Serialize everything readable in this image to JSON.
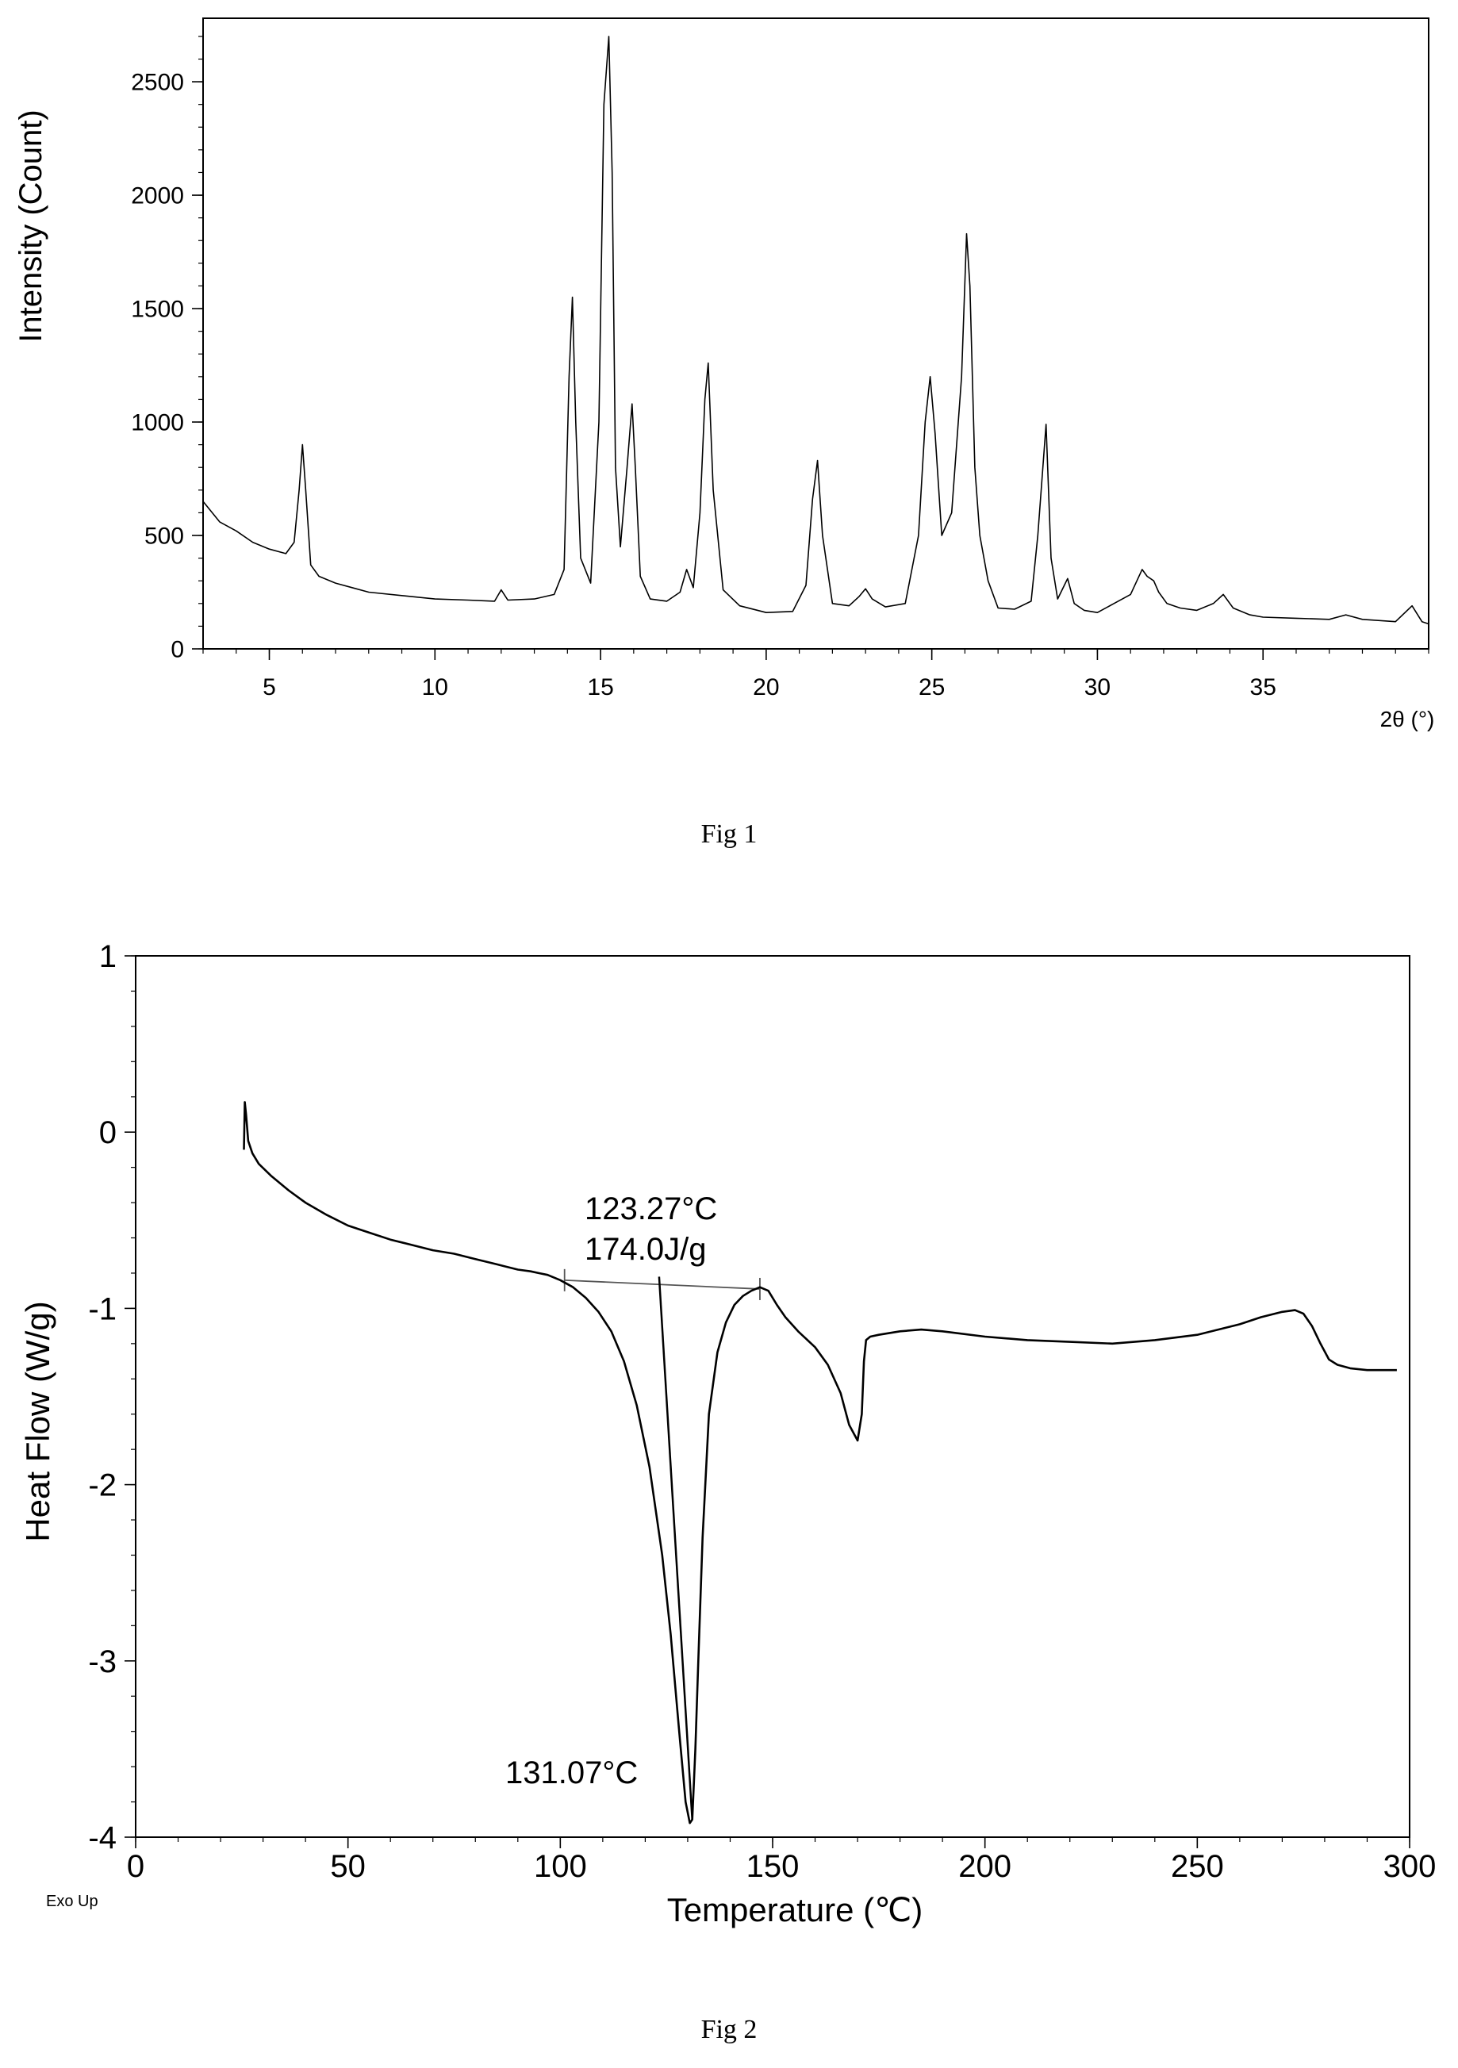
{
  "figures": [
    {
      "caption": "Fig 1",
      "chart_data": {
        "type": "line",
        "title": "",
        "xlabel": "2θ (°)",
        "ylabel": "Intensity (Count)",
        "xlim": [
          3,
          40
        ],
        "ylim": [
          0,
          2780
        ],
        "xticks": [
          5,
          10,
          15,
          20,
          25,
          30,
          35
        ],
        "yticks": [
          0,
          500,
          1000,
          1500,
          2000,
          2500
        ],
        "grid": false,
        "legend": "none",
        "series": [
          {
            "color": "#000000",
            "x": [
              3.0,
              3.5,
              4.0,
              4.5,
              5.0,
              5.5,
              5.75,
              5.9,
              6.0,
              6.1,
              6.25,
              6.5,
              7.0,
              7.5,
              8.0,
              9.0,
              10.0,
              11.0,
              11.8,
              12.0,
              12.2,
              13.0,
              13.6,
              13.9,
              14.05,
              14.15,
              14.25,
              14.4,
              14.7,
              14.95,
              15.1,
              15.25,
              15.35,
              15.45,
              15.6,
              15.8,
              15.95,
              16.05,
              16.2,
              16.5,
              17.0,
              17.4,
              17.6,
              17.8,
              18.0,
              18.15,
              18.25,
              18.4,
              18.7,
              19.2,
              20.0,
              20.8,
              21.2,
              21.4,
              21.55,
              21.7,
              22.0,
              22.5,
              22.8,
              23.0,
              23.2,
              23.6,
              24.2,
              24.6,
              24.8,
              24.95,
              25.1,
              25.3,
              25.6,
              25.9,
              26.05,
              26.15,
              26.3,
              26.45,
              26.7,
              27.0,
              27.5,
              28.0,
              28.2,
              28.45,
              28.6,
              28.8,
              29.0,
              29.1,
              29.3,
              29.6,
              30.0,
              30.5,
              31.0,
              31.35,
              31.5,
              31.7,
              31.85,
              32.1,
              32.5,
              33.0,
              33.5,
              33.8,
              34.1,
              34.6,
              35.0,
              36.0,
              37.0,
              37.5,
              38.0,
              39.0,
              39.5,
              39.8,
              40.0
            ],
            "y": [
              650,
              560,
              520,
              470,
              440,
              420,
              470,
              700,
              900,
              700,
              370,
              320,
              290,
              270,
              250,
              235,
              220,
              215,
              210,
              260,
              215,
              220,
              240,
              350,
              1200,
              1550,
              1000,
              400,
              290,
              1000,
              2400,
              2700,
              2100,
              800,
              450,
              800,
              1080,
              800,
              320,
              220,
              210,
              250,
              350,
              270,
              600,
              1100,
              1260,
              700,
              260,
              190,
              160,
              165,
              280,
              660,
              830,
              500,
              200,
              190,
              230,
              265,
              220,
              185,
              200,
              500,
              1000,
              1200,
              950,
              500,
              600,
              1200,
              1830,
              1600,
              800,
              500,
              300,
              180,
              175,
              210,
              500,
              990,
              400,
              220,
              280,
              310,
              200,
              170,
              160,
              200,
              240,
              350,
              320,
              300,
              250,
              200,
              180,
              170,
              200,
              240,
              180,
              150,
              140,
              135,
              130,
              150,
              130,
              120,
              190,
              120,
              110
            ]
          }
        ]
      }
    },
    {
      "caption": "Fig 2",
      "footnote": "Exo Up",
      "chart_data": {
        "type": "line",
        "title": "",
        "xlabel": "Temperature (℃)",
        "ylabel": "Heat Flow (W/g)",
        "xlim": [
          0,
          300
        ],
        "ylim": [
          -4,
          1
        ],
        "xticks": [
          0,
          50,
          100,
          150,
          200,
          250,
          300
        ],
        "yticks": [
          1,
          0,
          -1,
          -2,
          -3,
          -4
        ],
        "grid": false,
        "legend": "none",
        "annotations": [
          {
            "text": "123.27°C",
            "x": 123.27,
            "y": -0.82
          },
          {
            "text": "174.0J/g",
            "x": 123.27,
            "y": -0.82
          },
          {
            "text": "131.07°C",
            "x": 131.07,
            "y": -3.9
          }
        ],
        "baseline": {
          "x": [
            101,
            147
          ],
          "y": [
            -0.84,
            -0.89
          ]
        },
        "onset_tangent": {
          "x": [
            123.27,
            131.07
          ],
          "y": [
            -0.82,
            -3.9
          ]
        },
        "series": [
          {
            "color": "#000000",
            "x": [
              25.5,
              25.7,
              26.0,
              26.5,
              27.5,
              29.0,
              32.0,
              36.0,
              40.0,
              45.0,
              50.0,
              55.0,
              60.0,
              65.0,
              70.0,
              75.0,
              80.0,
              85.0,
              90.0,
              93.0,
              95.0,
              97.0,
              100.0,
              103.0,
              106.0,
              109.0,
              112.0,
              115.0,
              118.0,
              121.0,
              124.0,
              126.0,
              128.0,
              129.5,
              130.5,
              131.07,
              131.8,
              132.5,
              133.5,
              135.0,
              137.0,
              139.0,
              141.0,
              143.0,
              145.0,
              147.0,
              149.0,
              151.0,
              153.0,
              156.0,
              160.0,
              163.0,
              166.0,
              168.0,
              170.0,
              171.0,
              171.5,
              172.0,
              173.0,
              175.0,
              180.0,
              185.0,
              190.0,
              200.0,
              210.0,
              220.0,
              230.0,
              240.0,
              250.0,
              260.0,
              265.0,
              270.0,
              273.0,
              275.0,
              277.0,
              279.0,
              281.0,
              283.0,
              286.0,
              290.0,
              293.0,
              297.0
            ],
            "y": [
              -0.1,
              0.17,
              0.1,
              -0.05,
              -0.12,
              -0.18,
              -0.25,
              -0.33,
              -0.4,
              -0.47,
              -0.53,
              -0.57,
              -0.61,
              -0.64,
              -0.67,
              -0.69,
              -0.72,
              -0.75,
              -0.78,
              -0.79,
              -0.8,
              -0.81,
              -0.84,
              -0.88,
              -0.94,
              -1.02,
              -1.13,
              -1.3,
              -1.55,
              -1.9,
              -2.4,
              -2.85,
              -3.4,
              -3.8,
              -3.92,
              -3.9,
              -3.5,
              -3.0,
              -2.3,
              -1.6,
              -1.25,
              -1.08,
              -0.98,
              -0.93,
              -0.9,
              -0.88,
              -0.9,
              -0.98,
              -1.05,
              -1.13,
              -1.22,
              -1.32,
              -1.48,
              -1.66,
              -1.75,
              -1.6,
              -1.3,
              -1.18,
              -1.16,
              -1.15,
              -1.13,
              -1.12,
              -1.13,
              -1.16,
              -1.18,
              -1.19,
              -1.2,
              -1.18,
              -1.15,
              -1.09,
              -1.05,
              -1.02,
              -1.01,
              -1.03,
              -1.1,
              -1.2,
              -1.29,
              -1.32,
              -1.34,
              -1.35,
              -1.35,
              -1.35
            ]
          }
        ]
      }
    }
  ]
}
